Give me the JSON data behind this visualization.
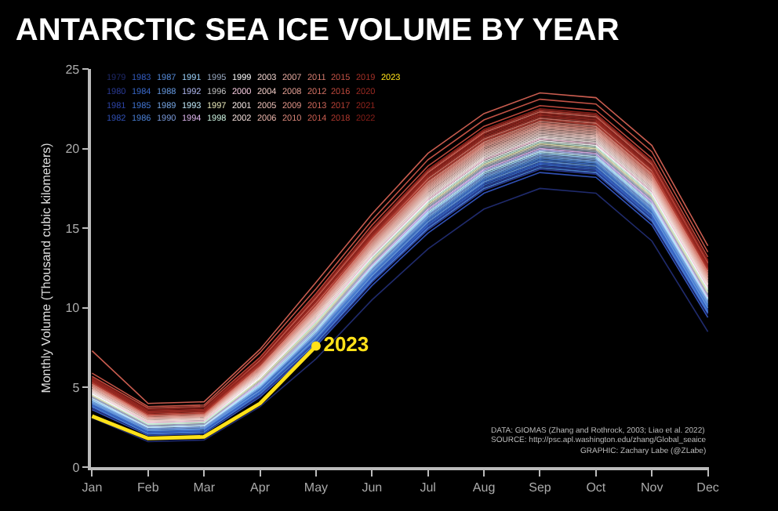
{
  "chart_data": {
    "type": "line",
    "title": "ANTARCTIC SEA ICE VOLUME BY YEAR",
    "ylabel": "Monthly Volume (Thousand cubic kilometers)",
    "categories": [
      "Jan",
      "Feb",
      "Mar",
      "Apr",
      "May",
      "Jun",
      "Jul",
      "Aug",
      "Sep",
      "Oct",
      "Nov",
      "Dec"
    ],
    "ylim": [
      0,
      25
    ],
    "yticks": [
      0,
      5,
      10,
      15,
      20,
      25
    ],
    "grid": false,
    "legend": "top left",
    "marker": "none",
    "line_style": "solid",
    "annotations": [
      "DATA: GIOMAS (Zhang and Rothrock, 2003; Liao et al. 2022)",
      "SOURCE: http://psc.apl.washington.edu/zhang/Global_seaice",
      "GRAPHIC: Zachary Labe (@ZLabe)"
    ],
    "series": [
      {
        "name": "1979",
        "color": "#1f2a6b",
        "values": [
          3.1,
          1.6,
          1.7,
          3.8,
          6.8,
          10.5,
          13.7,
          16.2,
          17.5,
          17.2,
          14.2,
          8.5
        ]
      },
      {
        "name": "1980",
        "color": "#2a3a94",
        "values": [
          3.7,
          2.1,
          2.2,
          4.5,
          7.7,
          11.6,
          14.9,
          17.4,
          18.7,
          18.4,
          15.4,
          9.6
        ]
      },
      {
        "name": "1981",
        "color": "#2d44a6",
        "values": [
          3.8,
          2.1,
          2.2,
          4.7,
          7.9,
          11.7,
          15.1,
          17.6,
          18.9,
          18.6,
          15.6,
          9.7
        ]
      },
      {
        "name": "1982",
        "color": "#3050b4",
        "values": [
          3.6,
          2.0,
          2.1,
          4.4,
          7.6,
          11.4,
          14.7,
          17.2,
          18.5,
          18.2,
          15.2,
          9.4
        ]
      },
      {
        "name": "1983",
        "color": "#335cc0",
        "values": [
          3.9,
          2.2,
          2.3,
          4.8,
          8.0,
          11.9,
          15.3,
          17.8,
          19.1,
          18.8,
          15.8,
          9.9
        ]
      },
      {
        "name": "1984",
        "color": "#3968c8",
        "values": [
          3.9,
          2.2,
          2.3,
          4.7,
          8.0,
          11.8,
          15.2,
          17.7,
          19.0,
          18.7,
          15.7,
          9.8
        ]
      },
      {
        "name": "1985",
        "color": "#4073cf",
        "values": [
          4.0,
          2.3,
          2.4,
          4.9,
          8.2,
          12.1,
          15.5,
          18.0,
          19.3,
          19.0,
          16.0,
          10.1
        ]
      },
      {
        "name": "1986",
        "color": "#4a7fd4",
        "values": [
          3.8,
          2.1,
          2.2,
          4.6,
          7.8,
          11.7,
          15.0,
          17.5,
          18.8,
          18.5,
          15.5,
          9.7
        ]
      },
      {
        "name": "1987",
        "color": "#558ad8",
        "values": [
          4.1,
          2.3,
          2.4,
          5.0,
          8.3,
          12.2,
          15.6,
          18.1,
          19.4,
          19.1,
          16.1,
          10.2
        ]
      },
      {
        "name": "1988",
        "color": "#6496dc",
        "values": [
          4.0,
          2.3,
          2.4,
          4.8,
          8.1,
          12.0,
          15.4,
          17.9,
          19.2,
          18.9,
          15.9,
          10.0
        ]
      },
      {
        "name": "1989",
        "color": "#74a3e0",
        "values": [
          4.1,
          2.4,
          2.5,
          5.0,
          8.4,
          12.3,
          15.7,
          18.2,
          19.5,
          19.2,
          16.2,
          10.3
        ]
      },
      {
        "name": "1990",
        "color": "#7898d8",
        "values": [
          4.2,
          2.4,
          2.5,
          5.1,
          8.4,
          12.4,
          15.8,
          18.3,
          19.6,
          19.3,
          16.3,
          10.4
        ]
      },
      {
        "name": "1991",
        "color": "#9fd6ff",
        "values": [
          4.2,
          2.5,
          2.6,
          5.1,
          8.5,
          12.5,
          15.9,
          18.4,
          19.7,
          19.4,
          16.4,
          10.5
        ]
      },
      {
        "name": "1992",
        "color": "#b0b8f0",
        "values": [
          4.3,
          2.5,
          2.6,
          5.3,
          8.7,
          12.6,
          16.1,
          18.6,
          19.9,
          19.6,
          16.6,
          10.6
        ]
      },
      {
        "name": "1993",
        "color": "#c0e8f8",
        "values": [
          4.3,
          2.5,
          2.6,
          5.2,
          8.6,
          12.6,
          16.0,
          18.5,
          19.8,
          19.5,
          16.5,
          10.6
        ]
      },
      {
        "name": "1994",
        "color": "#e0b8f0",
        "values": [
          4.4,
          2.6,
          2.7,
          5.3,
          8.8,
          12.7,
          16.2,
          18.7,
          20.0,
          19.7,
          16.7,
          10.7
        ]
      },
      {
        "name": "1995",
        "color": "#98a8c0",
        "values": [
          4.4,
          2.6,
          2.7,
          5.4,
          8.8,
          12.8,
          16.3,
          18.8,
          20.1,
          19.8,
          16.8,
          10.8
        ]
      },
      {
        "name": "1996",
        "color": "#bfbfbf",
        "values": [
          4.5,
          2.7,
          2.8,
          5.4,
          8.9,
          12.9,
          16.4,
          18.9,
          20.2,
          19.9,
          16.9,
          10.9
        ]
      },
      {
        "name": "1997",
        "color": "#e6e6b8",
        "values": [
          4.5,
          2.7,
          2.8,
          5.5,
          9.0,
          13.0,
          16.5,
          19.0,
          20.3,
          20.0,
          17.0,
          11.0
        ]
      },
      {
        "name": "1998",
        "color": "#c8eedc",
        "values": [
          4.6,
          2.7,
          2.8,
          5.6,
          9.1,
          13.1,
          16.6,
          19.1,
          20.4,
          20.1,
          17.1,
          11.1
        ]
      },
      {
        "name": "1999",
        "color": "#ffffff",
        "values": [
          4.6,
          2.8,
          2.9,
          5.6,
          9.2,
          13.2,
          16.7,
          19.2,
          20.5,
          20.2,
          17.2,
          11.2
        ]
      },
      {
        "name": "2000",
        "color": "#f4c8dc",
        "values": [
          4.7,
          2.8,
          2.9,
          5.7,
          9.2,
          13.3,
          16.8,
          19.3,
          20.6,
          20.3,
          17.3,
          11.3
        ]
      },
      {
        "name": "2001",
        "color": "#f3e5e3",
        "values": [
          4.7,
          2.9,
          3.0,
          5.7,
          9.3,
          13.4,
          16.9,
          19.4,
          20.7,
          20.4,
          17.4,
          11.4
        ]
      },
      {
        "name": "2002",
        "color": "#f0dcd8",
        "values": [
          4.8,
          2.9,
          3.0,
          5.8,
          9.4,
          13.5,
          17.0,
          19.5,
          20.8,
          20.5,
          17.5,
          11.5
        ]
      },
      {
        "name": "2003",
        "color": "#eed2cd",
        "values": [
          4.8,
          2.9,
          3.0,
          5.9,
          9.5,
          13.5,
          17.1,
          19.6,
          20.9,
          20.6,
          17.6,
          11.5
        ]
      },
      {
        "name": "2004",
        "color": "#ecc8c2",
        "values": [
          4.9,
          3.0,
          3.1,
          5.9,
          9.6,
          13.6,
          17.2,
          19.7,
          21.0,
          20.7,
          17.7,
          11.6
        ]
      },
      {
        "name": "2005",
        "color": "#e9beb6",
        "values": [
          4.9,
          3.0,
          3.1,
          6.0,
          9.6,
          13.7,
          17.3,
          19.8,
          21.1,
          20.8,
          17.8,
          11.7
        ]
      },
      {
        "name": "2006",
        "color": "#e7b3aa",
        "values": [
          5.0,
          3.1,
          3.2,
          6.0,
          9.7,
          13.8,
          17.4,
          19.9,
          21.2,
          20.9,
          17.9,
          11.8
        ]
      },
      {
        "name": "2007",
        "color": "#e4a89e",
        "values": [
          5.0,
          3.1,
          3.2,
          6.1,
          9.8,
          13.9,
          17.5,
          20.0,
          21.3,
          21.0,
          18.0,
          11.9
        ]
      },
      {
        "name": "2008",
        "color": "#e19d92",
        "values": [
          5.1,
          3.1,
          3.2,
          6.2,
          9.9,
          14.0,
          17.6,
          20.1,
          21.4,
          21.1,
          18.1,
          12.0
        ]
      },
      {
        "name": "2009",
        "color": "#de9286",
        "values": [
          5.1,
          3.2,
          3.3,
          6.2,
          10.0,
          14.1,
          17.7,
          20.2,
          21.5,
          21.2,
          18.2,
          12.1
        ]
      },
      {
        "name": "2010",
        "color": "#da877a",
        "values": [
          5.2,
          3.3,
          3.4,
          6.3,
          10.1,
          14.3,
          17.9,
          20.4,
          21.7,
          21.4,
          18.4,
          12.3
        ]
      },
      {
        "name": "2011",
        "color": "#d67c6f",
        "values": [
          5.2,
          3.2,
          3.3,
          6.3,
          10.0,
          14.2,
          17.8,
          20.3,
          21.6,
          21.3,
          18.3,
          12.2
        ]
      },
      {
        "name": "2012",
        "color": "#d27164",
        "values": [
          5.3,
          3.3,
          3.4,
          6.5,
          10.3,
          14.4,
          18.1,
          20.6,
          21.9,
          21.6,
          18.6,
          12.4
        ]
      },
      {
        "name": "2013",
        "color": "#cd6659",
        "values": [
          5.5,
          3.5,
          3.6,
          6.7,
          10.6,
          14.8,
          18.5,
          21.0,
          22.3,
          22.0,
          19.0,
          12.8
        ]
      },
      {
        "name": "2014",
        "color": "#c85c4f",
        "values": [
          7.3,
          4.0,
          4.1,
          7.4,
          11.6,
          15.9,
          19.7,
          22.2,
          23.5,
          23.2,
          20.2,
          13.9
        ]
      },
      {
        "name": "2015",
        "color": "#c25245",
        "values": [
          5.9,
          3.8,
          3.9,
          7.2,
          11.2,
          15.5,
          19.3,
          21.8,
          23.1,
          22.8,
          19.8,
          13.5
        ]
      },
      {
        "name": "2016",
        "color": "#bb483c",
        "values": [
          5.7,
          3.7,
          3.8,
          6.9,
          10.9,
          15.2,
          18.9,
          21.4,
          22.7,
          22.4,
          19.4,
          13.2
        ]
      },
      {
        "name": "2017",
        "color": "#b43f34",
        "values": [
          5.3,
          3.3,
          3.4,
          6.4,
          10.2,
          14.4,
          18.0,
          20.5,
          21.8,
          21.5,
          18.5,
          12.4
        ]
      },
      {
        "name": "2018",
        "color": "#ac372d",
        "values": [
          5.6,
          3.5,
          3.6,
          6.8,
          10.7,
          14.9,
          18.6,
          21.1,
          22.4,
          22.1,
          19.1,
          12.9
        ]
      },
      {
        "name": "2019",
        "color": "#a33027",
        "values": [
          5.4,
          3.4,
          3.5,
          6.5,
          10.4,
          14.5,
          18.2,
          20.7,
          22.0,
          21.7,
          18.7,
          12.5
        ]
      },
      {
        "name": "2020",
        "color": "#9a2a22",
        "values": [
          5.4,
          3.4,
          3.5,
          6.6,
          10.4,
          14.6,
          18.3,
          20.8,
          22.1,
          21.8,
          18.8,
          12.6
        ]
      },
      {
        "name": "2021",
        "color": "#91241d",
        "values": [
          5.5,
          3.5,
          3.6,
          6.6,
          10.5,
          14.7,
          18.4,
          20.9,
          22.2,
          21.9,
          18.9,
          12.7
        ]
      },
      {
        "name": "2022",
        "color": "#881f19",
        "values": [
          5.6,
          3.6,
          3.7,
          6.8,
          10.8,
          15.0,
          18.7,
          21.2,
          22.5,
          22.2,
          19.2,
          13.0
        ]
      },
      {
        "name": "2023",
        "color": "#ffe119",
        "values": [
          3.2,
          1.8,
          1.9,
          4.0,
          7.6,
          null,
          null,
          null,
          null,
          null,
          null,
          null
        ]
      }
    ]
  }
}
